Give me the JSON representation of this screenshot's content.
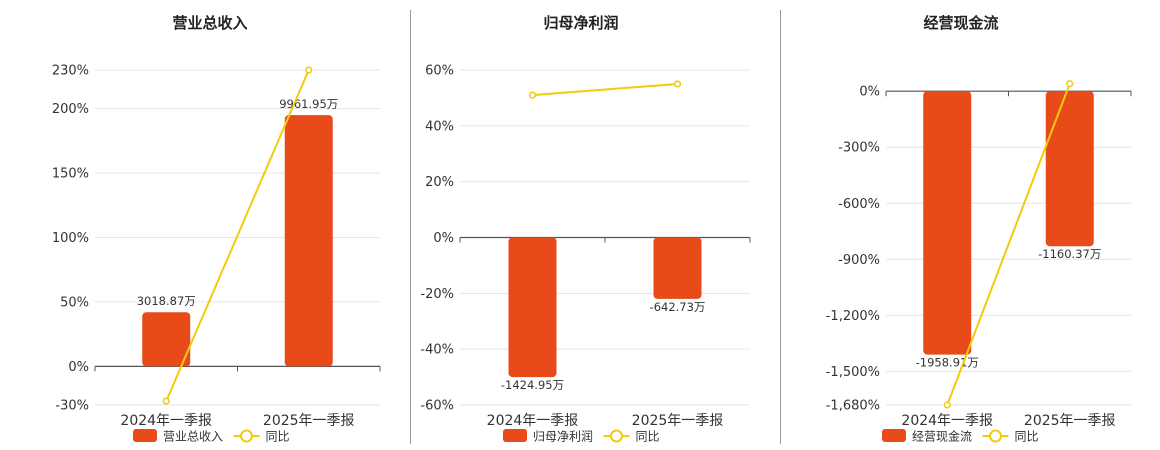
{
  "colors": {
    "bar": "#E84A1A",
    "line": "#F2CB0C",
    "grid": "#E6E6E6",
    "axis": "#555555"
  },
  "chart_data": [
    {
      "type": "bar",
      "title": "营业总收入",
      "categories": [
        "2024年一季报",
        "2025年一季报"
      ],
      "series": [
        {
          "name": "营业总收入",
          "type": "bar",
          "values": [
            42,
            195
          ],
          "labels": [
            "3018.87万",
            "9961.95万"
          ]
        },
        {
          "name": "同比",
          "type": "line",
          "values": [
            -27,
            230
          ]
        }
      ],
      "ylim": [
        -30,
        230
      ],
      "yticks": [
        -30,
        0,
        50,
        100,
        150,
        200,
        230
      ],
      "ytick_labels": [
        "-30%",
        "0%",
        "50%",
        "100%",
        "150%",
        "200%",
        "230%"
      ],
      "grid": true,
      "legend": "bottom"
    },
    {
      "type": "bar",
      "title": "归母净利润",
      "categories": [
        "2024年一季报",
        "2025年一季报"
      ],
      "series": [
        {
          "name": "归母净利润",
          "type": "bar",
          "values": [
            -50,
            -22
          ],
          "labels": [
            "-1424.95万",
            "-642.73万"
          ]
        },
        {
          "name": "同比",
          "type": "line",
          "values": [
            51,
            55
          ]
        }
      ],
      "ylim": [
        -60,
        60
      ],
      "yticks": [
        -60,
        -40,
        -20,
        0,
        20,
        40,
        60
      ],
      "ytick_labels": [
        "-60%",
        "-40%",
        "-20%",
        "0%",
        "20%",
        "40%",
        "60%"
      ],
      "grid": true,
      "legend": "bottom"
    },
    {
      "type": "bar",
      "title": "经营现金流",
      "categories": [
        "2024年一季报",
        "2025年一季报"
      ],
      "series": [
        {
          "name": "经营现金流",
          "type": "bar",
          "values": [
            -1410,
            -830
          ],
          "labels": [
            "-1958.91万",
            "-1160.37万"
          ]
        },
        {
          "name": "同比",
          "type": "line",
          "values": [
            -1680,
            40
          ]
        }
      ],
      "ylim": [
        -1680,
        60
      ],
      "yticks": [
        -1680,
        -1500,
        -1200,
        -900,
        -600,
        -300,
        0
      ],
      "ytick_labels": [
        "-1,680%",
        "-1,500%",
        "-1,200%",
        "-900%",
        "-600%",
        "-300%",
        "0%"
      ],
      "grid": true,
      "legend": "bottom"
    }
  ]
}
